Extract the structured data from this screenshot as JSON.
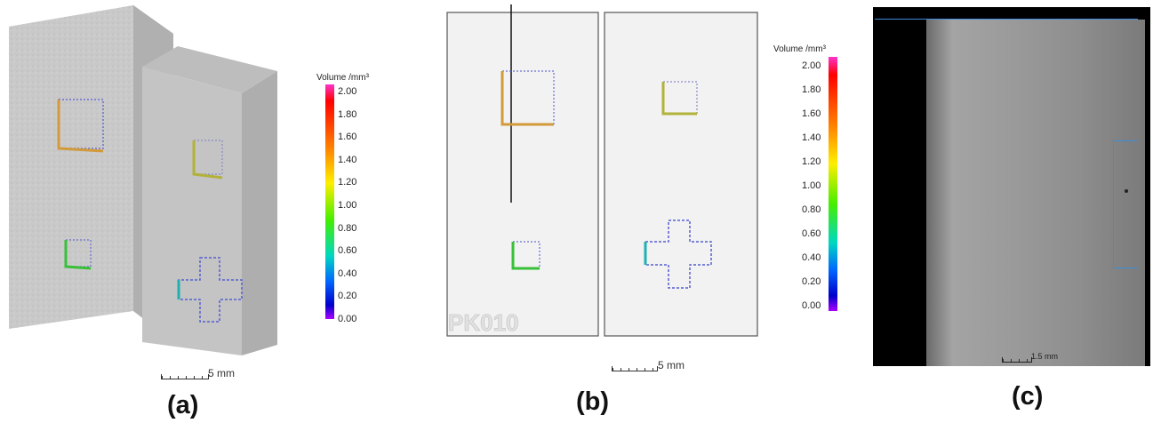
{
  "panels": {
    "a": {
      "caption": "(a)",
      "colorbar": {
        "title": "Volume /mm³",
        "ticks": [
          "2.00",
          "1.80",
          "1.60",
          "1.40",
          "1.20",
          "1.00",
          "0.80",
          "0.60",
          "0.40",
          "0.20",
          "0.00"
        ]
      },
      "scalebar_label": "5 mm"
    },
    "b": {
      "caption": "(b)",
      "colorbar": {
        "title": "Volume /mm³",
        "ticks": [
          "2.00",
          "1.80",
          "1.60",
          "1.40",
          "1.20",
          "1.00",
          "0.80",
          "0.60",
          "0.40",
          "0.20",
          "0.00"
        ]
      },
      "scalebar_label": "5 mm",
      "sample_label": "PK010"
    },
    "c": {
      "caption": "(c)",
      "scalebar_label": "1.5 mm"
    }
  },
  "colors": {
    "specimen_gray": "#c8c8c8",
    "background": "#ffffff",
    "ct_frame": "#000000",
    "roi_box": "#3a8fd8"
  }
}
